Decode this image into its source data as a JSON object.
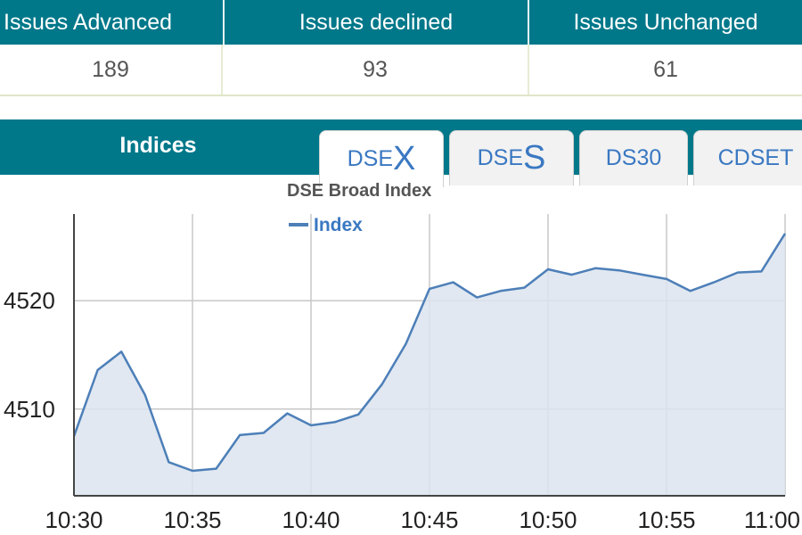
{
  "stats": {
    "headers": [
      "Issues Advanced",
      "Issues declined",
      "Issues Unchanged"
    ],
    "values": [
      "189",
      "93",
      "61"
    ]
  },
  "indices": {
    "title": "Indices",
    "tabs": [
      {
        "prefix": "DSE",
        "suffix": "X",
        "active": true
      },
      {
        "prefix": "DSE",
        "suffix": "S",
        "active": false
      },
      {
        "label": "DS30",
        "active": false
      },
      {
        "label": "CDSET",
        "active": false
      }
    ]
  },
  "colors": {
    "header_bg": "#00788a",
    "line": "#4d7fb8",
    "area_fill": "#dce4ef",
    "legend_text": "#3a78c2"
  },
  "chart_data": {
    "type": "area",
    "title": "DSE Broad Index",
    "legend": {
      "entries": [
        "Index"
      ],
      "placement": "top-left"
    },
    "series": [
      {
        "name": "Index",
        "x": [
          "10:30",
          "10:31",
          "10:32",
          "10:33",
          "10:34",
          "10:35",
          "10:36",
          "10:37",
          "10:38",
          "10:39",
          "10:40",
          "10:41",
          "10:42",
          "10:43",
          "10:44",
          "10:45",
          "10:46",
          "10:47",
          "10:48",
          "10:49",
          "10:50",
          "10:51",
          "10:52",
          "10:53",
          "10:54",
          "10:55",
          "10:56",
          "10:57",
          "10:58",
          "10:59",
          "11:00"
        ],
        "y": [
          4507.5,
          4513.6,
          4515.3,
          4511.3,
          4505.1,
          4504.3,
          4504.5,
          4507.6,
          4507.8,
          4509.6,
          4508.5,
          4508.8,
          4509.5,
          4512.3,
          4516.0,
          4521.1,
          4521.7,
          4520.3,
          4520.9,
          4521.2,
          4522.9,
          4522.4,
          4523.0,
          4522.8,
          4522.4,
          4522.0,
          4520.9,
          4521.7,
          4522.6,
          4522.7,
          4526.2
        ]
      }
    ],
    "xticks": [
      "10:30",
      "10:35",
      "10:40",
      "10:45",
      "10:50",
      "10:55",
      "11:00"
    ],
    "yticks": [
      4510,
      4520
    ],
    "ylim": [
      4502,
      4528
    ],
    "grid": true
  }
}
